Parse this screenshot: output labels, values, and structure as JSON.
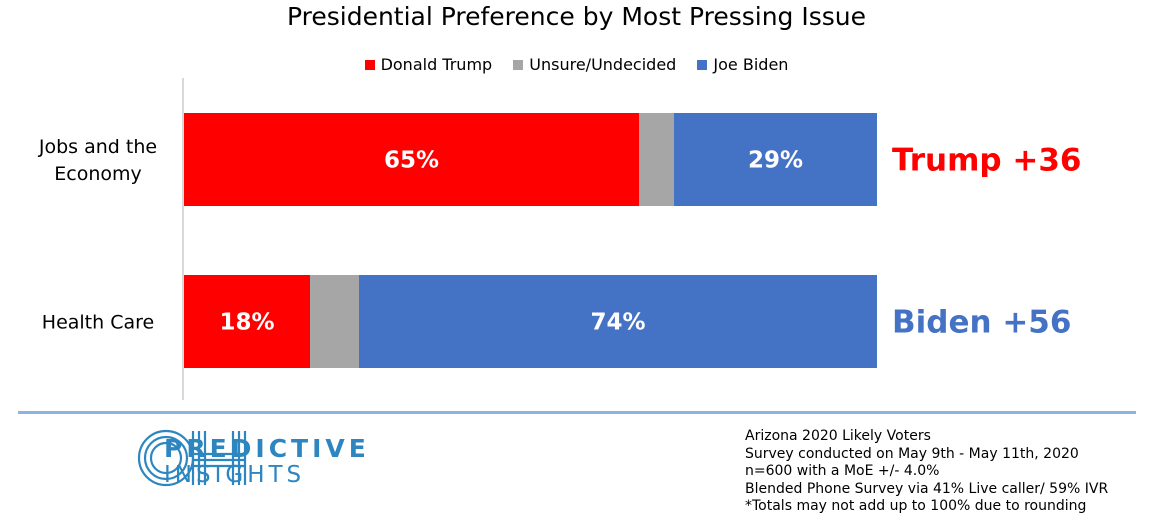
{
  "chart_data": {
    "type": "bar",
    "orientation": "horizontal",
    "stacked": true,
    "title": "Presidential Preference by Most Pressing Issue",
    "categories": [
      "Jobs and the Economy",
      "Health Care"
    ],
    "series": [
      {
        "name": "Donald Trump",
        "color": "#ff0000",
        "values": [
          65,
          18
        ],
        "labels": [
          "65%",
          "18%"
        ]
      },
      {
        "name": "Unsure/Undecided",
        "color": "#a6a6a6",
        "values": [
          5,
          7
        ],
        "labels": [
          "",
          ""
        ]
      },
      {
        "name": "Joe Biden",
        "color": "#4472c4",
        "values": [
          29,
          74
        ],
        "labels": [
          "29%",
          "74%"
        ]
      }
    ],
    "xlim": [
      0,
      100
    ],
    "annotations": [
      {
        "text": "Trump +36",
        "color": "#ff0000"
      },
      {
        "text": "Biden +56",
        "color": "#4472c4"
      }
    ],
    "legend_position": "top",
    "grid": false
  },
  "legend": [
    {
      "name": "Donald Trump",
      "color": "#ff0000"
    },
    {
      "name": "Unsure/Undecided",
      "color": "#a6a6a6"
    },
    {
      "name": "Joe Biden",
      "color": "#4472c4"
    }
  ],
  "logo": {
    "line1": "PREDICTIVE",
    "line2": "INSIGHTS",
    "color": "#2e86c1"
  },
  "notes": [
    "Arizona 2020 Likely Voters",
    "Survey conducted on May 9th - May 11th, 2020",
    "n=600 with a MoE +/- 4.0%",
    "Blended Phone Survey via 41% Live caller/ 59% IVR",
    "*Totals may not add up to 100% due to rounding"
  ]
}
